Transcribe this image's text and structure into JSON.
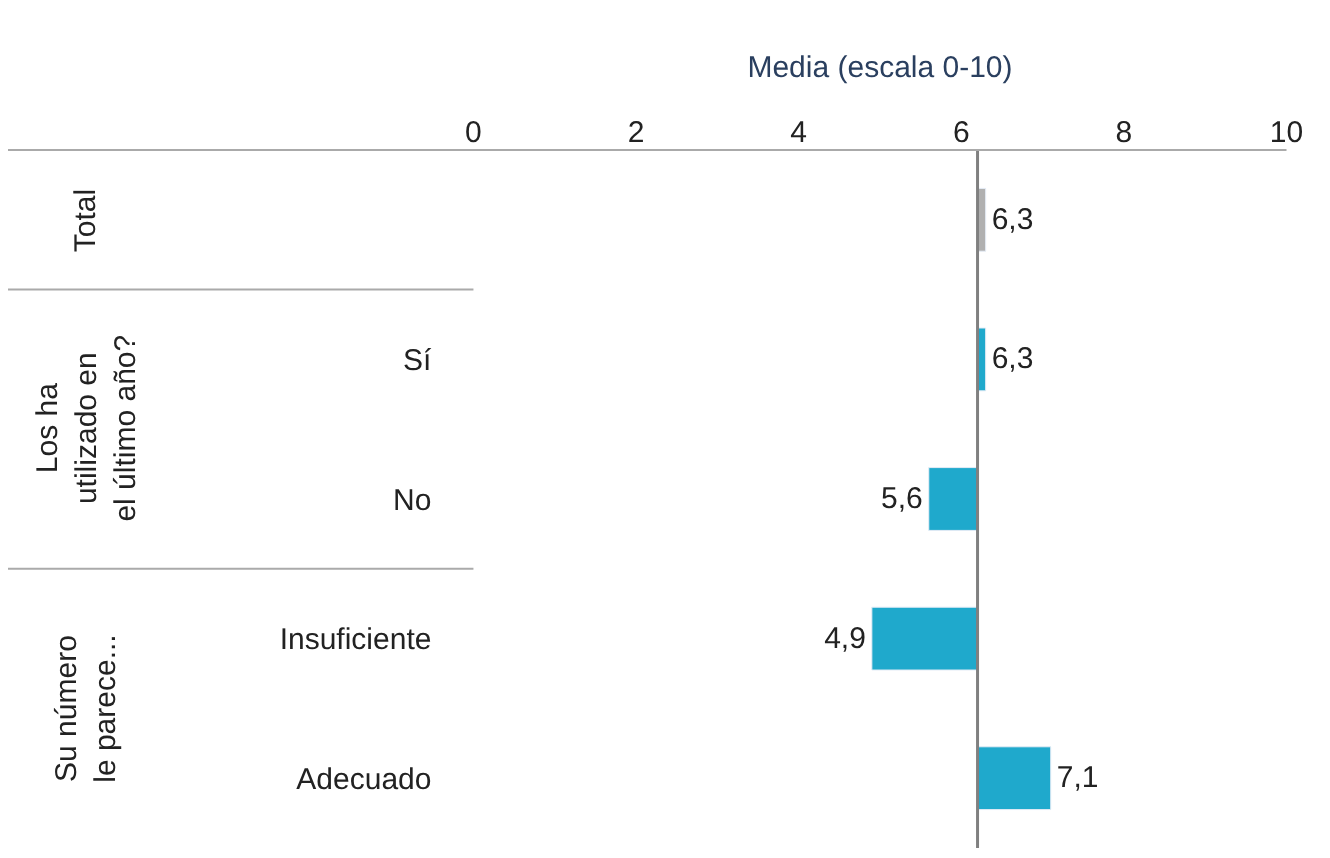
{
  "chart_data": {
    "type": "bar",
    "orientation": "horizontal",
    "xlabel": "Media (escala 0-10)",
    "categories": [
      null,
      "Sí",
      "No",
      "Insuficiente",
      "Adecuado"
    ],
    "values": [
      0.1,
      0.1,
      -0.6,
      -1.3,
      0.9
    ],
    "base": [
      6.2,
      6.2,
      6.2,
      6.2,
      6.2
    ],
    "value_labels": [
      "6,3",
      "6,3",
      "5,6",
      "4,9",
      "7,1"
    ],
    "colors": [
      "#b0b0b0",
      "#1fa9cc",
      "#1fa9cc",
      "#1fa9cc",
      "#1fa9cc"
    ],
    "xlim": [
      0,
      10
    ],
    "xticks": [
      0,
      2,
      4,
      6,
      8,
      10
    ],
    "ref_lines": [
      {
        "axis": "x",
        "value": 6.2,
        "color": "#808080"
      }
    ],
    "annotations": [
      "Total",
      "Los ha utilizado en el último año?",
      "Su número le parece..."
    ]
  }
}
